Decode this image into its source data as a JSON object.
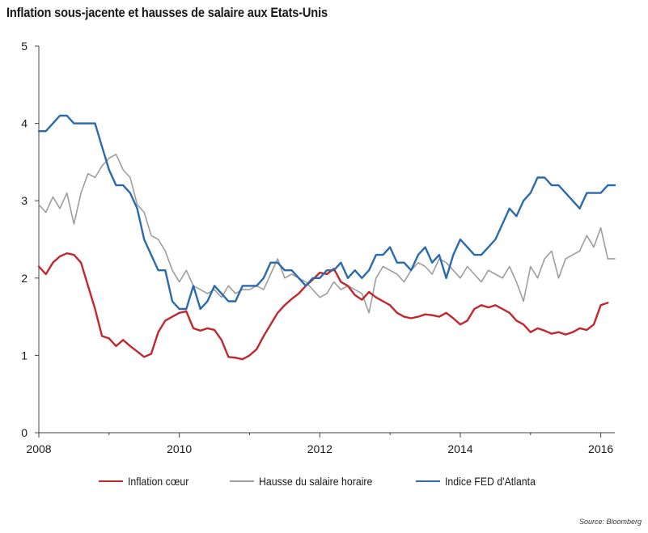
{
  "title": "Inflation sous-jacente et hausses de salaire aux Etats-Unis",
  "source": "Source: Bloomberg",
  "chart_data": {
    "type": "line",
    "title": "Inflation sous-jacente et hausses de salaire aux Etats-Unis",
    "xlabel": "",
    "ylabel": "",
    "xlim": [
      2008,
      2016.2
    ],
    "ylim": [
      0,
      5
    ],
    "x_ticks": [
      2008,
      2010,
      2012,
      2014,
      2016
    ],
    "y_ticks": [
      0,
      1,
      2,
      3,
      4,
      5
    ],
    "grid": false,
    "legend_position": "bottom",
    "series": [
      {
        "name": "Inflation cœur",
        "color": "#c1272d",
        "x": [
          2008.0,
          2008.1,
          2008.2,
          2008.3,
          2008.4,
          2008.5,
          2008.6,
          2008.7,
          2008.8,
          2008.9,
          2009.0,
          2009.1,
          2009.2,
          2009.3,
          2009.4,
          2009.5,
          2009.6,
          2009.7,
          2009.8,
          2009.9,
          2010.0,
          2010.1,
          2010.2,
          2010.3,
          2010.4,
          2010.5,
          2010.6,
          2010.7,
          2010.8,
          2010.9,
          2011.0,
          2011.1,
          2011.2,
          2011.3,
          2011.4,
          2011.5,
          2011.6,
          2011.7,
          2011.8,
          2011.9,
          2012.0,
          2012.1,
          2012.2,
          2012.3,
          2012.4,
          2012.5,
          2012.6,
          2012.7,
          2012.8,
          2012.9,
          2013.0,
          2013.1,
          2013.2,
          2013.3,
          2013.4,
          2013.5,
          2013.6,
          2013.7,
          2013.8,
          2013.9,
          2014.0,
          2014.1,
          2014.2,
          2014.3,
          2014.4,
          2014.5,
          2014.6,
          2014.7,
          2014.8,
          2014.9,
          2015.0,
          2015.1,
          2015.2,
          2015.3,
          2015.4,
          2015.5,
          2015.6,
          2015.7,
          2015.8,
          2015.9,
          2016.0,
          2016.1
        ],
        "y": [
          2.15,
          2.05,
          2.2,
          2.28,
          2.32,
          2.3,
          2.2,
          1.9,
          1.6,
          1.25,
          1.22,
          1.12,
          1.2,
          1.12,
          1.05,
          0.98,
          1.02,
          1.3,
          1.45,
          1.5,
          1.55,
          1.57,
          1.35,
          1.32,
          1.35,
          1.33,
          1.2,
          0.98,
          0.97,
          0.95,
          1.0,
          1.08,
          1.25,
          1.4,
          1.55,
          1.65,
          1.73,
          1.8,
          1.9,
          1.98,
          2.07,
          2.05,
          2.12,
          1.95,
          1.9,
          1.78,
          1.72,
          1.82,
          1.75,
          1.7,
          1.65,
          1.55,
          1.5,
          1.48,
          1.5,
          1.53,
          1.52,
          1.5,
          1.55,
          1.48,
          1.4,
          1.45,
          1.6,
          1.65,
          1.62,
          1.65,
          1.6,
          1.55,
          1.45,
          1.4,
          1.3,
          1.35,
          1.32,
          1.28,
          1.3,
          1.27,
          1.3,
          1.35,
          1.33,
          1.4,
          1.65,
          1.68
        ]
      },
      {
        "name": "Hausse du salaire horaire",
        "color": "#9d9d9d",
        "x": [
          2008.0,
          2008.1,
          2008.2,
          2008.3,
          2008.4,
          2008.5,
          2008.6,
          2008.7,
          2008.8,
          2008.9,
          2009.0,
          2009.1,
          2009.2,
          2009.3,
          2009.4,
          2009.5,
          2009.6,
          2009.7,
          2009.8,
          2009.9,
          2010.0,
          2010.1,
          2010.2,
          2010.3,
          2010.4,
          2010.5,
          2010.6,
          2010.7,
          2010.8,
          2010.9,
          2011.0,
          2011.1,
          2011.2,
          2011.3,
          2011.4,
          2011.5,
          2011.6,
          2011.7,
          2011.8,
          2011.9,
          2012.0,
          2012.1,
          2012.2,
          2012.3,
          2012.4,
          2012.5,
          2012.6,
          2012.7,
          2012.8,
          2012.9,
          2013.0,
          2013.1,
          2013.2,
          2013.3,
          2013.4,
          2013.5,
          2013.6,
          2013.7,
          2013.8,
          2013.9,
          2014.0,
          2014.1,
          2014.2,
          2014.3,
          2014.4,
          2014.5,
          2014.6,
          2014.7,
          2014.8,
          2014.9,
          2015.0,
          2015.1,
          2015.2,
          2015.3,
          2015.4,
          2015.5,
          2015.6,
          2015.7,
          2015.8,
          2015.9,
          2016.0,
          2016.1,
          2016.2
        ],
        "y": [
          2.95,
          2.85,
          3.05,
          2.9,
          3.1,
          2.7,
          3.1,
          3.35,
          3.3,
          3.45,
          3.55,
          3.6,
          3.4,
          3.3,
          2.95,
          2.85,
          2.55,
          2.5,
          2.35,
          2.1,
          1.95,
          2.1,
          1.9,
          1.85,
          1.8,
          1.85,
          1.75,
          1.9,
          1.8,
          1.85,
          1.85,
          1.9,
          1.85,
          2.05,
          2.25,
          2.0,
          2.05,
          2.0,
          1.95,
          1.85,
          1.75,
          1.8,
          1.95,
          1.85,
          1.9,
          1.85,
          1.8,
          1.55,
          2.0,
          2.15,
          2.1,
          2.05,
          1.95,
          2.1,
          2.2,
          2.15,
          2.05,
          2.25,
          2.2,
          2.1,
          2.0,
          2.15,
          2.05,
          1.95,
          2.1,
          2.05,
          2.0,
          2.15,
          1.95,
          1.7,
          2.15,
          2.0,
          2.25,
          2.35,
          2.0,
          2.25,
          2.3,
          2.35,
          2.55,
          2.4,
          2.65,
          2.25,
          2.25
        ]
      },
      {
        "name": "Indice FED d'Atlanta",
        "color": "#2a6aad",
        "x": [
          2008.0,
          2008.1,
          2008.2,
          2008.3,
          2008.4,
          2008.5,
          2008.6,
          2008.7,
          2008.8,
          2008.9,
          2009.0,
          2009.1,
          2009.2,
          2009.3,
          2009.4,
          2009.5,
          2009.6,
          2009.7,
          2009.8,
          2009.9,
          2010.0,
          2010.1,
          2010.2,
          2010.3,
          2010.4,
          2010.5,
          2010.6,
          2010.7,
          2010.8,
          2010.9,
          2011.0,
          2011.1,
          2011.2,
          2011.3,
          2011.4,
          2011.5,
          2011.6,
          2011.7,
          2011.8,
          2011.9,
          2012.0,
          2012.1,
          2012.2,
          2012.3,
          2012.4,
          2012.5,
          2012.6,
          2012.7,
          2012.8,
          2012.9,
          2013.0,
          2013.1,
          2013.2,
          2013.3,
          2013.4,
          2013.5,
          2013.6,
          2013.7,
          2013.8,
          2013.9,
          2014.0,
          2014.1,
          2014.2,
          2014.3,
          2014.4,
          2014.5,
          2014.6,
          2014.7,
          2014.8,
          2014.9,
          2015.0,
          2015.1,
          2015.2,
          2015.3,
          2015.4,
          2015.5,
          2015.6,
          2015.7,
          2015.8,
          2015.9,
          2016.0,
          2016.1,
          2016.2
        ],
        "y": [
          3.9,
          3.9,
          4.0,
          4.1,
          4.1,
          4.0,
          4.0,
          4.0,
          4.0,
          3.7,
          3.4,
          3.2,
          3.2,
          3.1,
          2.9,
          2.5,
          2.3,
          2.1,
          2.1,
          1.7,
          1.6,
          1.6,
          1.9,
          1.6,
          1.7,
          1.9,
          1.8,
          1.7,
          1.7,
          1.9,
          1.9,
          1.9,
          2.0,
          2.2,
          2.2,
          2.1,
          2.1,
          2.0,
          1.9,
          2.0,
          2.0,
          2.1,
          2.1,
          2.2,
          2.0,
          2.1,
          2.0,
          2.1,
          2.3,
          2.3,
          2.4,
          2.2,
          2.2,
          2.1,
          2.3,
          2.4,
          2.2,
          2.3,
          2.0,
          2.3,
          2.5,
          2.4,
          2.3,
          2.3,
          2.4,
          2.5,
          2.7,
          2.9,
          2.8,
          3.0,
          3.1,
          3.3,
          3.3,
          3.2,
          3.2,
          3.1,
          3.0,
          2.9,
          3.1,
          3.1,
          3.1,
          3.2,
          3.2
        ]
      }
    ]
  }
}
